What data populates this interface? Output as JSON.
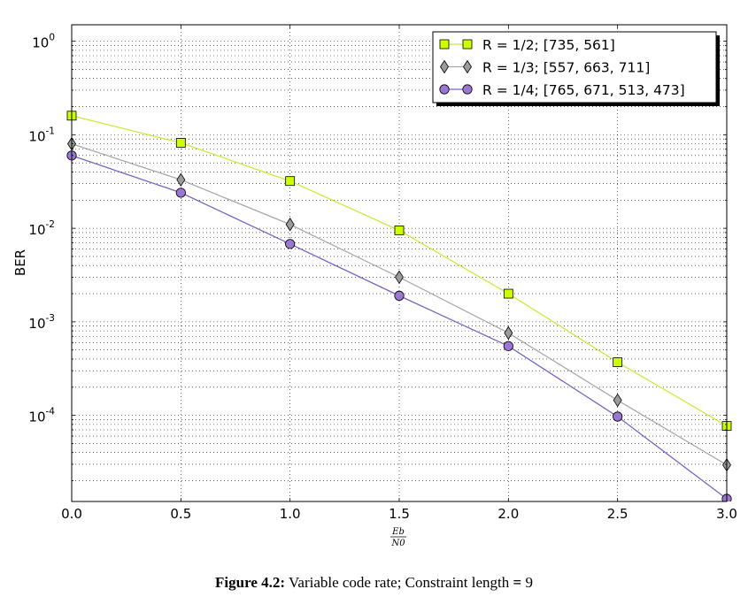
{
  "chart_data": {
    "type": "line",
    "yscale": "log",
    "xlabel_numerator": "Eb",
    "xlabel_denominator": "N0",
    "ylabel": "BER",
    "xlim": [
      0.0,
      3.0
    ],
    "ylim": [
      1.2e-05,
      1.5
    ],
    "x_ticks": [
      "0.0",
      "0.5",
      "1.0",
      "1.5",
      "2.0",
      "2.5",
      "3.0"
    ],
    "y_ticks": [
      {
        "base": "10",
        "exp": "0",
        "value": 1
      },
      {
        "base": "10",
        "exp": "-1",
        "value": 0.1
      },
      {
        "base": "10",
        "exp": "-2",
        "value": 0.01
      },
      {
        "base": "10",
        "exp": "-3",
        "value": 0.001
      },
      {
        "base": "10",
        "exp": "-4",
        "value": 0.0001
      }
    ],
    "grid": true,
    "legend_position": "top-right",
    "x": [
      0.0,
      0.5,
      1.0,
      1.5,
      2.0,
      2.5,
      3.0
    ],
    "series": [
      {
        "name": "R = 1/2; [735, 561]",
        "marker": "square",
        "color": "#ccff00",
        "line_color": "#c3ee3a",
        "values": [
          0.16,
          0.082,
          0.032,
          0.0095,
          0.002,
          0.00037,
          7.7e-05
        ]
      },
      {
        "name": "R = 1/3; [557, 663, 711]",
        "marker": "diamond",
        "color": "#9b9b9b",
        "line_color": "#a9a9a9",
        "values": [
          0.08,
          0.033,
          0.011,
          0.003,
          0.00076,
          0.000145,
          2.95e-05
        ]
      },
      {
        "name": "R = 1/4; [765, 671, 513, 473]",
        "marker": "circle",
        "color": "#9b77d2",
        "line_color": "#7b63c8",
        "values": [
          0.06,
          0.024,
          0.0068,
          0.0019,
          0.00055,
          9.7e-05,
          1.28e-05
        ]
      }
    ]
  },
  "caption": {
    "label": "Figure 4.2:",
    "text_prefix": " Variable code rate; Constraint length ",
    "equals": "=",
    "text_suffix": " 9"
  }
}
